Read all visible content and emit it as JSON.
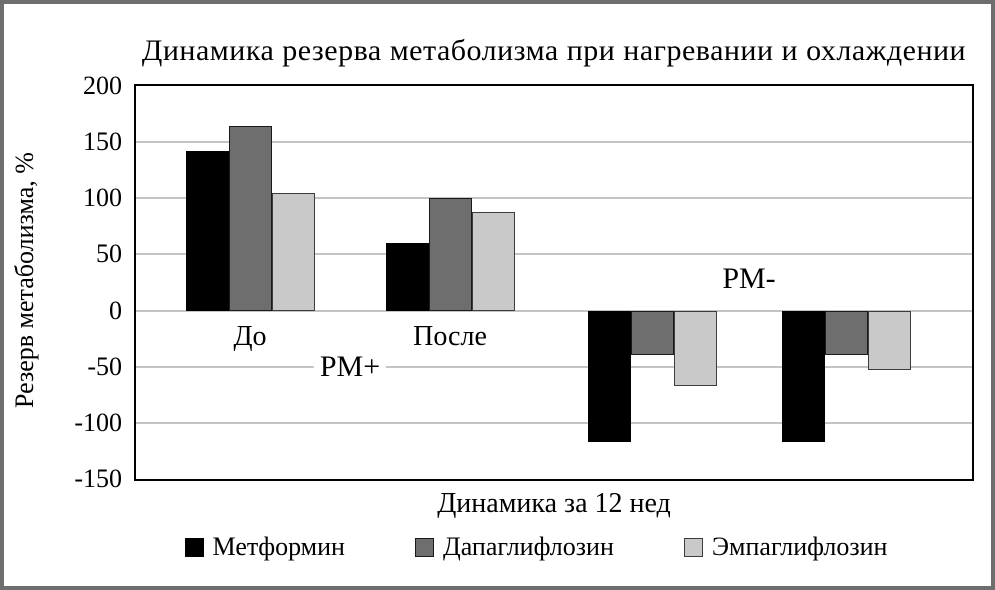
{
  "window": {
    "background": "#ffffff",
    "frame_color": "#6e6e6e"
  },
  "chart_data": {
    "type": "bar",
    "title": "Динамика резерва метаболизма при нагревании и охлаждении",
    "ylabel": "Резерв метаболизма, %",
    "xlabel": "Динамика за 12 нед",
    "categories": [
      "До",
      "После",
      "",
      ""
    ],
    "annotations": [
      {
        "label": "РМ+",
        "between_groups": [
          1,
          2
        ],
        "side": "below-axis"
      },
      {
        "label": "РМ-",
        "between_groups": [
          3,
          4
        ],
        "side": "above-axis"
      }
    ],
    "series": [
      {
        "name": "Метформин",
        "color": "#000000",
        "border": "#000000",
        "values": [
          142,
          60,
          -117,
          -117
        ]
      },
      {
        "name": "Дапаглифлозин",
        "color": "#6e6e6e",
        "border": "#1a1a1a",
        "values": [
          164,
          100,
          -40,
          -40
        ]
      },
      {
        "name": "Эмпаглифлозин",
        "color": "#c9c9c9",
        "border": "#3c3c3c",
        "values": [
          105,
          88,
          -67,
          -53
        ]
      }
    ],
    "ylim": [
      -150,
      200
    ],
    "yticks": [
      200,
      150,
      100,
      50,
      0,
      -50,
      -100,
      -150
    ],
    "grid": true,
    "gridline_color": "#c4c4c4",
    "legend_position": "bottom"
  }
}
